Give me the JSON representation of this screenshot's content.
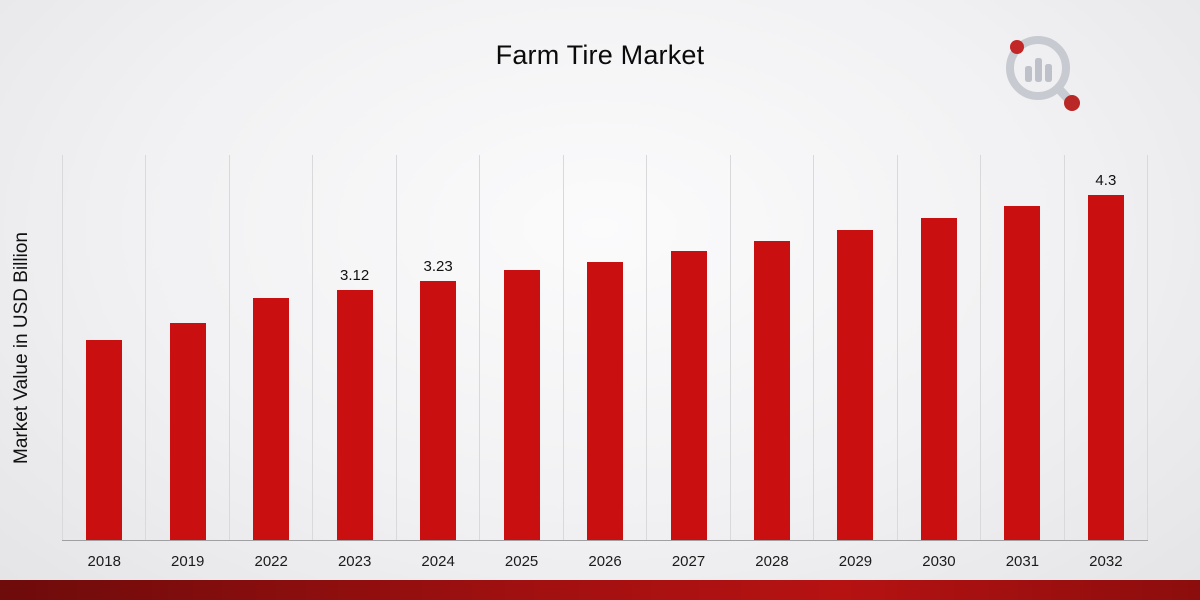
{
  "page": {
    "title": "Farm Tire Market",
    "ylabel": "Market Value in USD Billion"
  },
  "branding": {
    "logo_name": "market-research-logo",
    "accent_color": "#a21010",
    "bar_color": "#c90f0f"
  },
  "chart_data": {
    "type": "bar",
    "title": "Farm Tire Market",
    "xlabel": "",
    "ylabel": "Market Value in USD Billion",
    "categories": [
      "2018",
      "2019",
      "2022",
      "2023",
      "2024",
      "2025",
      "2026",
      "2027",
      "2028",
      "2029",
      "2030",
      "2031",
      "2032"
    ],
    "values": [
      2.49,
      2.71,
      3.02,
      3.12,
      3.23,
      3.37,
      3.47,
      3.6,
      3.73,
      3.87,
      4.02,
      4.17,
      4.3
    ],
    "point_labels": [
      null,
      null,
      null,
      "3.12",
      "3.23",
      null,
      null,
      null,
      null,
      null,
      null,
      null,
      "4.3"
    ],
    "ylim": [
      0,
      4.8
    ],
    "grid": "vertical",
    "legend": "none",
    "bar_color": "#c90f0f"
  }
}
